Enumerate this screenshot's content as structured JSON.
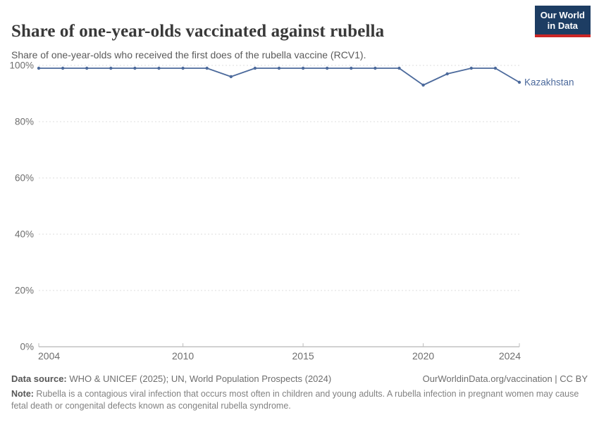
{
  "header": {
    "title": "Share of one-year-olds vaccinated against rubella",
    "subtitle": "Share of one-year-olds who received the first does of the rubella vaccine (RCV1).",
    "logo": {
      "line1": "Our World",
      "line2": "in Data",
      "bg_color": "#1d3d63",
      "accent_color": "#cb2626"
    }
  },
  "chart_data": {
    "type": "line",
    "title": "Share of one-year-olds vaccinated against rubella",
    "xlabel": "",
    "ylabel": "",
    "x": [
      2004,
      2005,
      2006,
      2007,
      2008,
      2009,
      2010,
      2011,
      2012,
      2013,
      2014,
      2015,
      2016,
      2017,
      2018,
      2019,
      2020,
      2021,
      2022,
      2023,
      2024
    ],
    "series": [
      {
        "name": "Kazakhstan",
        "color": "#4c6a9c",
        "values": [
          99,
          99,
          99,
          99,
          99,
          99,
          99,
          99,
          96,
          99,
          99,
          99,
          99,
          99,
          99,
          99,
          93,
          97,
          99,
          99,
          94
        ]
      }
    ],
    "xlim": [
      2004,
      2024
    ],
    "ylim": [
      0,
      100
    ],
    "grid": "horizontal-dashed",
    "legend": "end-of-line-label",
    "yticks": [
      {
        "value": 0,
        "label": "0%"
      },
      {
        "value": 20,
        "label": "20%"
      },
      {
        "value": 40,
        "label": "40%"
      },
      {
        "value": 60,
        "label": "60%"
      },
      {
        "value": 80,
        "label": "80%"
      },
      {
        "value": 100,
        "label": "100%"
      }
    ],
    "xticks": [
      {
        "value": 2004,
        "label": "2004"
      },
      {
        "value": 2010,
        "label": "2010"
      },
      {
        "value": 2015,
        "label": "2015"
      },
      {
        "value": 2020,
        "label": "2020"
      },
      {
        "value": 2024,
        "label": "2024"
      }
    ],
    "colors": {
      "grid": "#dcdcdc",
      "axis": "#a3a3a3",
      "tick": "#bdbdbd",
      "tick_text": "#6e6e6e"
    }
  },
  "footer": {
    "source_label": "Data source:",
    "source_text": " WHO & UNICEF (2025); UN, World Population Prospects (2024)",
    "link_text": "OurWorldinData.org/vaccination | CC BY",
    "note_label": "Note:",
    "note_text": " Rubella is a contagious viral infection that occurs most often in children and young adults. A rubella infection in pregnant women may cause fetal death or congenital defects known as congenital rubella syndrome."
  }
}
